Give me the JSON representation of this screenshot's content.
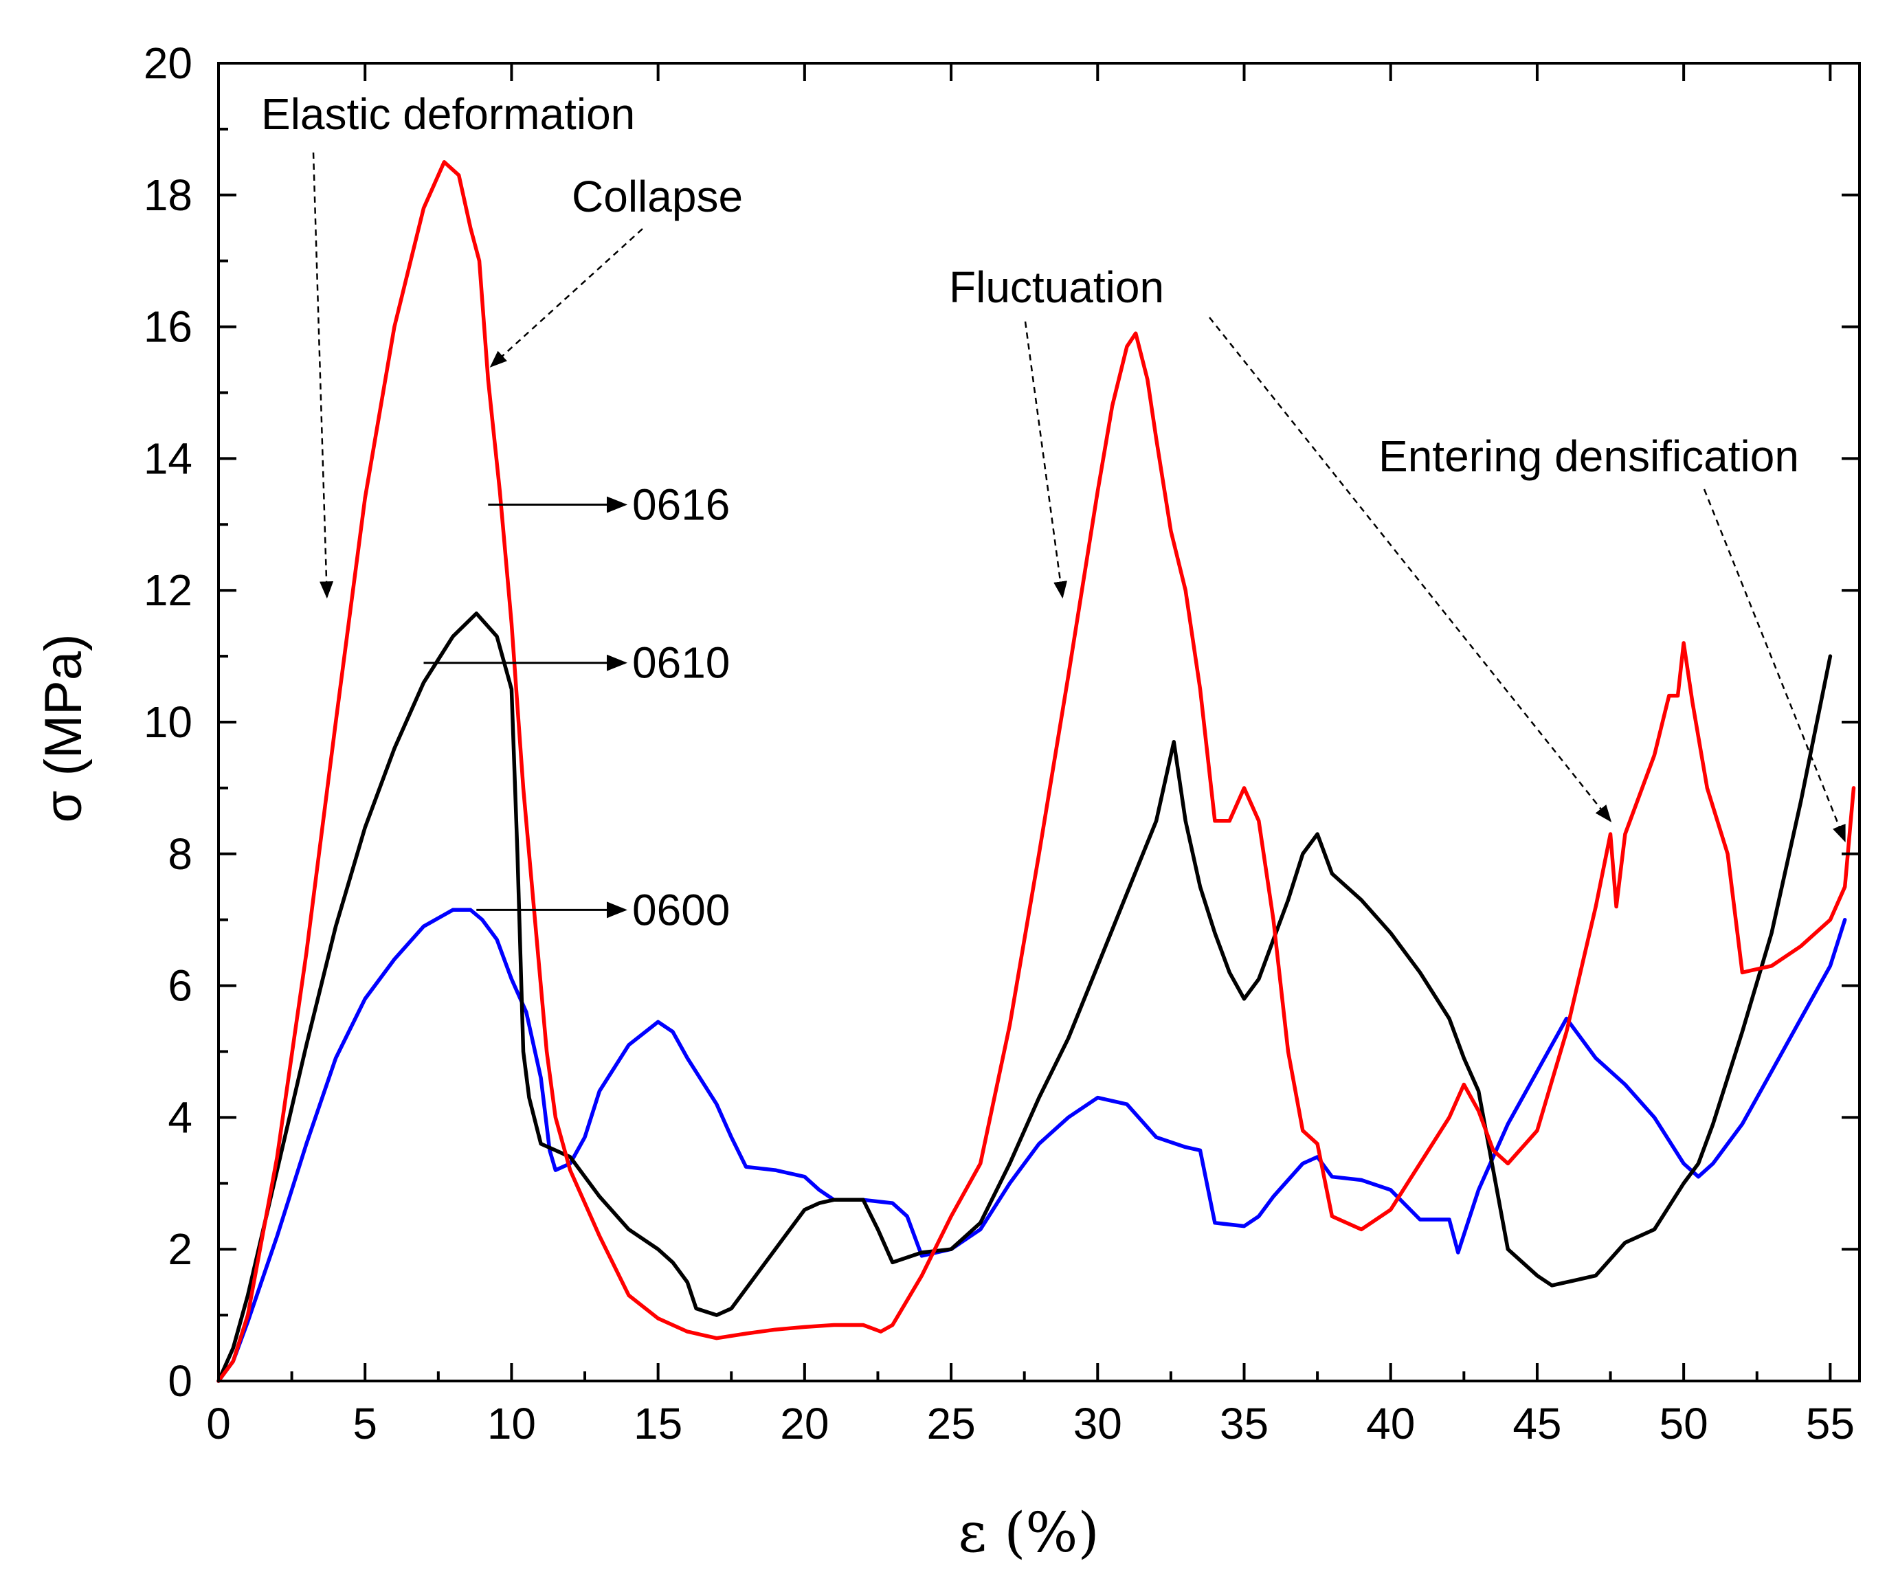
{
  "chart_data": {
    "type": "line",
    "title": "",
    "xlabel": "ε (%)",
    "ylabel": "σ (MPa)",
    "xlim": [
      0,
      56
    ],
    "ylim": [
      0,
      20
    ],
    "xticks": [
      0,
      5,
      10,
      15,
      20,
      25,
      30,
      35,
      40,
      45,
      50,
      55
    ],
    "yticks": [
      0,
      2,
      4,
      6,
      8,
      10,
      12,
      14,
      16,
      18,
      20
    ],
    "grid": false,
    "series": [
      {
        "name": "0600",
        "color": "#0000ff",
        "x": [
          0,
          0.5,
          1,
          2,
          3,
          4,
          5,
          6,
          7,
          8,
          8.6,
          9,
          9.5,
          10,
          10.5,
          11,
          11.3,
          11.5,
          12,
          12.5,
          13,
          14,
          15,
          15.5,
          16,
          17,
          17.5,
          18,
          19,
          20,
          20.5,
          21,
          22,
          23,
          23.5,
          24,
          25,
          26,
          27,
          28,
          29,
          30,
          31,
          31.5,
          32,
          33,
          33.5,
          34,
          35,
          35.5,
          36,
          37,
          37.5,
          38,
          39,
          40,
          41,
          42,
          42.3,
          43,
          44,
          45,
          46,
          46.5,
          47,
          48,
          49,
          50,
          50.5,
          51,
          52,
          53,
          54,
          55,
          55.5
        ],
        "y": [
          0,
          0.3,
          0.9,
          2.2,
          3.6,
          4.9,
          5.8,
          6.4,
          6.9,
          7.15,
          7.15,
          7.0,
          6.7,
          6.1,
          5.6,
          4.6,
          3.5,
          3.2,
          3.3,
          3.7,
          4.4,
          5.1,
          5.45,
          5.3,
          4.9,
          4.2,
          3.7,
          3.25,
          3.2,
          3.1,
          2.9,
          2.75,
          2.75,
          2.7,
          2.5,
          1.9,
          2.0,
          2.3,
          3.0,
          3.6,
          4.0,
          4.3,
          4.2,
          3.95,
          3.7,
          3.55,
          3.5,
          2.4,
          2.35,
          2.5,
          2.8,
          3.3,
          3.4,
          3.1,
          3.05,
          2.9,
          2.45,
          2.45,
          1.95,
          2.9,
          3.9,
          4.7,
          5.5,
          5.2,
          4.9,
          4.5,
          4.0,
          3.3,
          3.1,
          3.3,
          3.9,
          4.7,
          5.5,
          6.3,
          7.0
        ]
      },
      {
        "name": "0610",
        "color": "#000000",
        "x": [
          0,
          0.5,
          1,
          2,
          3,
          4,
          5,
          6,
          7,
          8,
          8.8,
          9.5,
          10,
          10.2,
          10.4,
          10.6,
          11,
          11.5,
          12,
          13,
          14,
          15,
          15.5,
          16,
          16.3,
          17,
          17.5,
          18,
          19,
          20,
          20.5,
          21,
          22,
          22.5,
          23,
          24,
          25,
          26,
          27,
          28,
          29,
          30,
          31,
          32,
          32.6,
          33,
          33.5,
          34,
          34.5,
          35,
          35.5,
          36,
          36.5,
          37,
          37.5,
          38,
          39,
          40,
          41,
          42,
          42.5,
          43,
          43.5,
          44,
          45,
          45.5,
          46,
          47,
          48,
          49,
          50,
          50.5,
          51,
          52,
          53,
          54,
          55
        ],
        "y": [
          0,
          0.5,
          1.3,
          3.2,
          5.1,
          6.9,
          8.4,
          9.6,
          10.6,
          11.3,
          11.65,
          11.3,
          10.5,
          8.0,
          5.0,
          4.3,
          3.6,
          3.5,
          3.4,
          2.8,
          2.3,
          2.0,
          1.8,
          1.5,
          1.1,
          1.0,
          1.1,
          1.4,
          2.0,
          2.6,
          2.7,
          2.75,
          2.75,
          2.3,
          1.8,
          1.95,
          2.0,
          2.4,
          3.3,
          4.3,
          5.2,
          6.3,
          7.4,
          8.5,
          9.7,
          8.5,
          7.5,
          6.8,
          6.2,
          5.8,
          6.1,
          6.7,
          7.3,
          8.0,
          8.3,
          7.7,
          7.3,
          6.8,
          6.2,
          5.5,
          4.9,
          4.4,
          3.2,
          2.0,
          1.6,
          1.45,
          1.5,
          1.6,
          2.1,
          2.3,
          3.0,
          3.3,
          3.9,
          5.3,
          6.8,
          8.8,
          11.0
        ]
      },
      {
        "name": "0616",
        "color": "#ff0000",
        "x": [
          0,
          0.5,
          1,
          2,
          3,
          4,
          5,
          6,
          7,
          7.7,
          8.2,
          8.6,
          8.9,
          9.2,
          9.6,
          10,
          10.4,
          10.8,
          11.2,
          11.5,
          12,
          13,
          14,
          15,
          16,
          17,
          18,
          19,
          20,
          21,
          22,
          22.6,
          23,
          24,
          25,
          26,
          27,
          28,
          29,
          30,
          30.5,
          31,
          31.3,
          31.7,
          32,
          32.5,
          33,
          33.5,
          34,
          34.5,
          35,
          35.5,
          36,
          36.5,
          37,
          37.5,
          38,
          39,
          40,
          41,
          42,
          42.5,
          43,
          43.5,
          44,
          45,
          46,
          47,
          47.5,
          47.7,
          48,
          49,
          49.5,
          49.8,
          50,
          50.3,
          50.8,
          51.5,
          52,
          53,
          54,
          55,
          55.5,
          55.8
        ],
        "y": [
          0,
          0.3,
          1.0,
          3.4,
          6.5,
          10.0,
          13.4,
          16.0,
          17.8,
          18.5,
          18.3,
          17.5,
          17.0,
          15.2,
          13.5,
          11.5,
          9.0,
          7.0,
          5.0,
          4.0,
          3.2,
          2.2,
          1.3,
          0.95,
          0.75,
          0.65,
          0.72,
          0.78,
          0.82,
          0.85,
          0.85,
          0.75,
          0.85,
          1.6,
          2.5,
          3.3,
          5.4,
          8.0,
          10.7,
          13.5,
          14.8,
          15.7,
          15.9,
          15.2,
          14.3,
          12.9,
          12.0,
          10.5,
          8.5,
          8.5,
          9.0,
          8.5,
          7.0,
          5.0,
          3.8,
          3.6,
          2.5,
          2.3,
          2.6,
          3.3,
          4.0,
          4.5,
          4.1,
          3.5,
          3.3,
          3.8,
          5.3,
          7.2,
          8.3,
          7.2,
          8.3,
          9.5,
          10.4,
          10.4,
          11.2,
          10.3,
          9.0,
          8.0,
          6.2,
          6.3,
          6.6,
          7.0,
          7.5,
          9.0
        ]
      }
    ],
    "annotations": [
      {
        "id": "elastic",
        "text": "Elastic deformation",
        "points_to": [
          3.7,
          11.9
        ]
      },
      {
        "id": "collapse",
        "text": "Collapse",
        "points_to": [
          9.3,
          15.4
        ]
      },
      {
        "id": "fluctuation",
        "text": "Fluctuation",
        "points_to": [
          [
            28.8,
            11.9
          ],
          [
            47.5,
            8.5
          ]
        ]
      },
      {
        "id": "densification",
        "text": "Entering densification",
        "points_to": [
          55.5,
          8.2
        ]
      },
      {
        "id": "label-0616",
        "text": "0616",
        "series": "0616",
        "from": [
          9.2,
          13.3
        ]
      },
      {
        "id": "label-0610",
        "text": "0610",
        "series": "0610",
        "from": [
          7.0,
          10.9
        ]
      },
      {
        "id": "label-0600",
        "text": "0600",
        "series": "0600",
        "from": [
          8.8,
          7.15
        ]
      }
    ]
  }
}
